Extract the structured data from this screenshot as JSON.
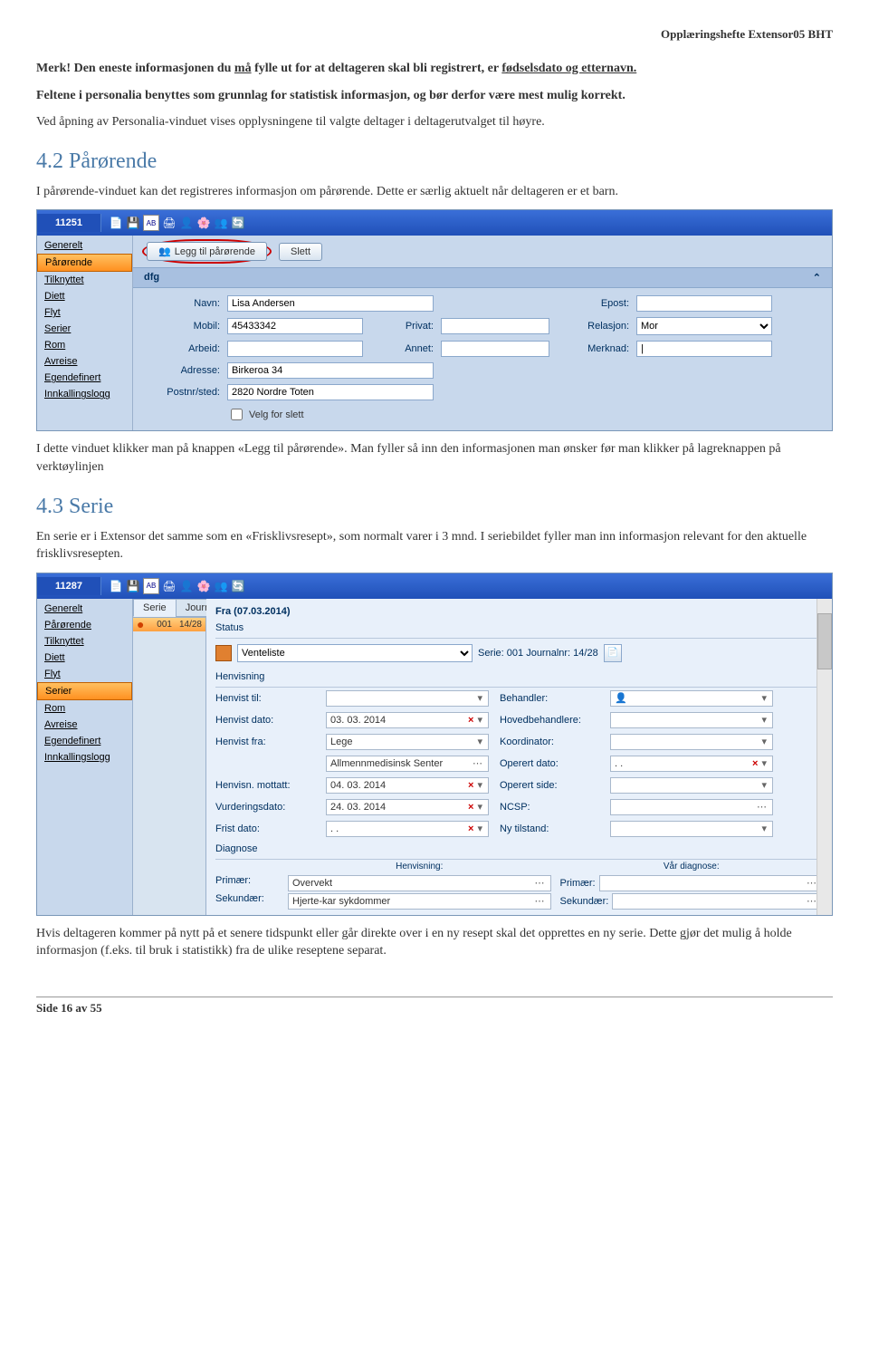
{
  "doc": {
    "header": "Opplæringshefte Extensor05 BHT",
    "p1a": "Merk! Den eneste informasjonen du ",
    "p1b": "må",
    "p1c": " fylle ut for at deltageren skal bli registrert, er ",
    "p1d": "fødselsdato og etternavn.",
    "p2": "Feltene i personalia benyttes som grunnlag for statistisk informasjon, og bør derfor være mest mulig korrekt.",
    "p3": "Ved åpning av Personalia-vinduet vises opplysningene til valgte deltager i deltagerutvalget til høyre.",
    "h1": "4.2 Pårørende",
    "p4": "I pårørende-vinduet kan det registreres informasjon om pårørende. Dette er særlig aktuelt når deltageren er et barn.",
    "p5": "I dette vinduet klikker man på knappen «Legg til pårørende». Man fyller så inn den informasjonen man ønsker før man klikker på lagreknappen på verktøylinjen",
    "h2": "4.3 Serie",
    "p6": "En serie er i Extensor det samme som en «Frisklivsresept», som normalt varer i 3 mnd. I seriebildet fyller man inn informasjon relevant for den aktuelle frisklivsresepten.",
    "p7": "Hvis deltageren kommer på nytt på et senere tidspunkt eller går direkte over i en ny resept skal det opprettes en ny serie. Dette gjør det mulig å holde informasjon (f.eks. til bruk i statistikk) fra de ulike reseptene separat.",
    "footer": "Side 16 av 55"
  },
  "app1": {
    "title": "11251",
    "sidebar": [
      "Generelt",
      "Pårørende",
      "Tilknyttet",
      "Diett",
      "Flyt",
      "Serier",
      "Rom",
      "Avreise",
      "Egendefinert",
      "Innkallingslogg"
    ],
    "active": 1,
    "btn1": "Legg til pårørende",
    "btn2": "Slett",
    "group": "dfg",
    "labels": {
      "navn": "Navn:",
      "epost": "Epost:",
      "mobil": "Mobil:",
      "privat": "Privat:",
      "relasjon": "Relasjon:",
      "arbeid": "Arbeid:",
      "annet": "Annet:",
      "merknad": "Merknad:",
      "adresse": "Adresse:",
      "postnr": "Postnr/sted:",
      "velg": "Velg for slett"
    },
    "vals": {
      "navn": "Lisa Andersen",
      "mobil": "45433342",
      "relasjon": "Mor",
      "merknad": "|",
      "adresse": "Birkeroa 34",
      "postnr": "2820 Nordre Toten"
    }
  },
  "app2": {
    "title": "11287",
    "sidebar": [
      "Generelt",
      "Pårørende",
      "Tilknyttet",
      "Diett",
      "Flyt",
      "Serier",
      "Rom",
      "Avreise",
      "Egendefinert",
      "Innkallingslogg"
    ],
    "active": 5,
    "tabs": {
      "serie": "Serie",
      "journaln": "Journaln"
    },
    "listhdr": "Fra (07.03.2014)",
    "row": {
      "n": "001",
      "j": "14/28"
    },
    "sec": {
      "status": "Status",
      "henvisning": "Henvisning",
      "diagnose": "Diagnose"
    },
    "status": {
      "venteliste": "Venteliste",
      "serie": "Serie: 001 Journalnr: 14/28"
    },
    "lbl": {
      "henvisttil": "Henvist til:",
      "behandler": "Behandler:",
      "henvistdato": "Henvist dato:",
      "hovedbeh": "Hovedbehandlere:",
      "henvistfra": "Henvist fra:",
      "koordinator": "Koordinator:",
      "operertdato": "Operert dato:",
      "mottatt": "Henvisn. mottatt:",
      "operertside": "Operert side:",
      "vurdering": "Vurderingsdato:",
      "ncsp": "NCSP:",
      "fristdato": "Frist dato:",
      "nytilstand": "Ny tilstand:",
      "primaer": "Primær:",
      "sekundaer": "Sekundær:",
      "henv": "Henvisning:",
      "vaar": "Vår diagnose:"
    },
    "val": {
      "henvistdato": "03. 03. 2014",
      "henvistfra": "Lege",
      "allmenn": "Allmennmedisinsk Senter",
      "mottatt": "04. 03. 2014",
      "vurdering": "24. 03. 2014",
      "fristdato": ".   .",
      "operertdato": ".   .",
      "primaer": "Overvekt",
      "sekundaer": "Hjerte-kar sykdommer"
    }
  }
}
